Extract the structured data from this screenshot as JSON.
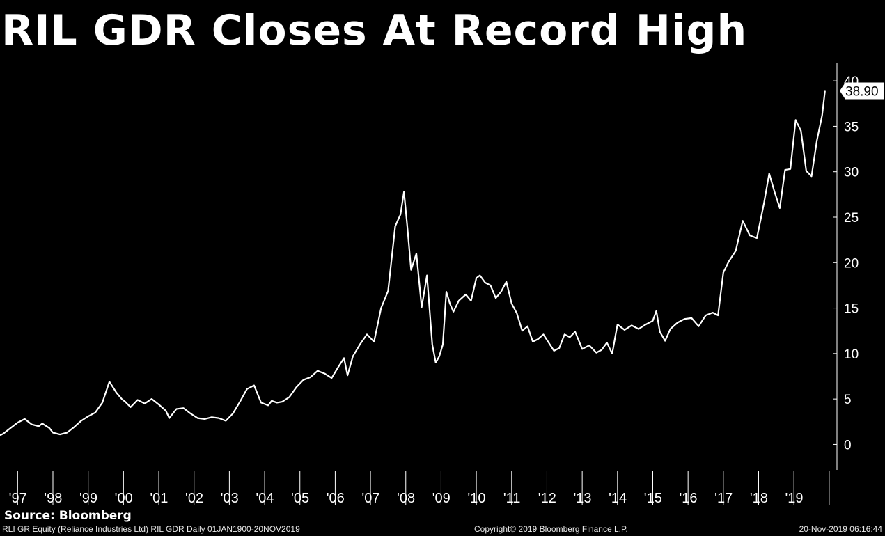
{
  "title": "RIL GDR Closes At Record High",
  "source": "Source: Bloomberg",
  "footer": {
    "left": "RLI GR Equity (Reliance Industries Ltd) RIL GDR  Daily 01JAN1900-20NOV2019",
    "center": "Copyright© 2019 Bloomberg Finance L.P.",
    "right": "20-Nov-2019 06:16:44"
  },
  "colors": {
    "background": "#000000",
    "line": "#ffffff",
    "text": "#ffffff",
    "callout_bg": "#ffffff",
    "callout_text": "#000000"
  },
  "chart_data": {
    "type": "line",
    "title": "RIL GDR Closes At Record High",
    "xlabel": "",
    "ylabel": "",
    "x_tick_labels": [
      "'97",
      "'98",
      "'99",
      "'00",
      "'01",
      "'02",
      "'03",
      "'04",
      "'05",
      "'06",
      "'07",
      "'08",
      "'09",
      "'10",
      "'11",
      "'12",
      "'13",
      "'14",
      "'15",
      "'16",
      "'17",
      "'18",
      "'19"
    ],
    "y_ticks": [
      0,
      5,
      10,
      15,
      20,
      25,
      30,
      35,
      40
    ],
    "xlim": [
      1996.5,
      2020.2
    ],
    "ylim": [
      -2.8,
      42
    ],
    "y_axis_position": "right",
    "grid": false,
    "last_value_label": "38.90",
    "series": [
      {
        "x": [
          1996.5,
          1996.6,
          1996.8,
          1997.0,
          1997.2,
          1997.4,
          1997.6,
          1997.7,
          1997.9,
          1998.0,
          1998.2,
          1998.4,
          1998.6,
          1998.8,
          1999.0,
          1999.2,
          1999.4,
          1999.6,
          1999.8,
          1999.95,
          2000.05,
          2000.2,
          2000.4,
          2000.6,
          2000.8,
          2001.0,
          2001.2,
          2001.3,
          2001.5,
          2001.7,
          2001.9,
          2002.1,
          2002.3,
          2002.5,
          2002.7,
          2002.9,
          2003.1,
          2003.3,
          2003.5,
          2003.7,
          2003.9,
          2004.1,
          2004.2,
          2004.35,
          2004.5,
          2004.7,
          2004.9,
          2005.1,
          2005.3,
          2005.5,
          2005.7,
          2005.9,
          2006.1,
          2006.25,
          2006.35,
          2006.5,
          2006.7,
          2006.9,
          2007.1,
          2007.3,
          2007.5,
          2007.7,
          2007.85,
          2007.95,
          2008.05,
          2008.15,
          2008.3,
          2008.45,
          2008.6,
          2008.75,
          2008.85,
          2008.95,
          2009.05,
          2009.15,
          2009.25,
          2009.35,
          2009.5,
          2009.7,
          2009.85,
          2010.0,
          2010.1,
          2010.25,
          2010.4,
          2010.55,
          2010.7,
          2010.85,
          2011.0,
          2011.15,
          2011.3,
          2011.45,
          2011.6,
          2011.75,
          2011.9,
          2012.05,
          2012.2,
          2012.35,
          2012.5,
          2012.65,
          2012.8,
          2013.0,
          2013.2,
          2013.4,
          2013.55,
          2013.7,
          2013.85,
          2014.0,
          2014.2,
          2014.4,
          2014.6,
          2014.8,
          2015.0,
          2015.1,
          2015.2,
          2015.35,
          2015.5,
          2015.7,
          2015.9,
          2016.1,
          2016.3,
          2016.5,
          2016.7,
          2016.85,
          2017.0,
          2017.15,
          2017.35,
          2017.55,
          2017.75,
          2017.95,
          2018.15,
          2018.3,
          2018.45,
          2018.6,
          2018.75,
          2018.9,
          2019.05,
          2019.2,
          2019.35,
          2019.5,
          2019.65,
          2019.8,
          2019.88
        ],
        "values": [
          1.0,
          1.2,
          1.8,
          2.4,
          2.8,
          2.2,
          2.0,
          2.3,
          1.8,
          1.3,
          1.1,
          1.3,
          1.9,
          2.6,
          3.1,
          3.5,
          4.6,
          6.9,
          5.7,
          5.0,
          4.7,
          4.1,
          4.9,
          4.5,
          5.0,
          4.4,
          3.7,
          2.9,
          3.9,
          4.0,
          3.4,
          2.9,
          2.8,
          3.0,
          2.9,
          2.6,
          3.4,
          4.7,
          6.1,
          6.5,
          4.6,
          4.3,
          4.8,
          4.6,
          4.7,
          5.2,
          6.3,
          7.1,
          7.4,
          8.1,
          7.8,
          7.3,
          8.6,
          9.5,
          7.6,
          9.7,
          11.0,
          12.1,
          11.3,
          15.0,
          16.9,
          24.0,
          25.3,
          27.8,
          23.7,
          19.2,
          21.0,
          15.1,
          18.6,
          11.0,
          9.0,
          9.7,
          11.0,
          16.8,
          15.5,
          14.6,
          15.8,
          16.5,
          15.8,
          18.3,
          18.6,
          17.8,
          17.5,
          16.1,
          16.8,
          17.9,
          15.5,
          14.4,
          12.5,
          13.0,
          11.3,
          11.6,
          12.1,
          11.2,
          10.3,
          10.6,
          12.1,
          11.8,
          12.4,
          10.5,
          10.9,
          10.1,
          10.4,
          11.2,
          10.0,
          13.2,
          12.6,
          13.1,
          12.7,
          13.2,
          13.6,
          14.7,
          12.4,
          11.4,
          12.7,
          13.4,
          13.8,
          13.9,
          13.0,
          14.2,
          14.5,
          14.2,
          18.9,
          20.1,
          21.3,
          24.6,
          23.0,
          22.7,
          26.5,
          29.8,
          27.8,
          26.0,
          30.2,
          30.3,
          35.7,
          34.5,
          30.1,
          29.5,
          33.4,
          36.2,
          38.9
        ]
      }
    ]
  }
}
